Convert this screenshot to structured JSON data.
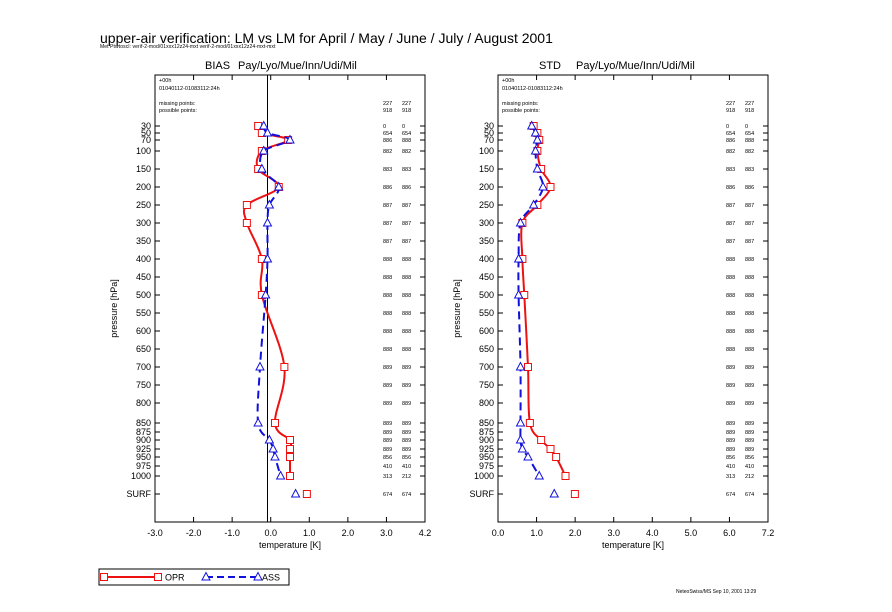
{
  "title": "upper-air verification: LM vs LM for April / May / June / July / August 2001",
  "file_info": "Met Ptwtoscl: verif-2-mod/01xxx12z24-mxt verif-2-mod/01xxx12z24-mxt-mxt",
  "footer_stamp": "NeteoSwiss/MS Sep 10, 2001 13:29",
  "legend": [
    {
      "name": "OPR",
      "color": "#ee1111",
      "marker": "square",
      "dash": "solid"
    },
    {
      "name": "ASS",
      "color": "#1111dd",
      "marker": "triangle",
      "dash": "dashed"
    }
  ],
  "colors": {
    "opr": "#ee1111",
    "ass": "#1111dd"
  },
  "chart_data": [
    {
      "type": "line",
      "title": "BIAS",
      "subtitle": "Pay/Lyo/Mue/Inn/Udi/Mil",
      "xlabel": "temperature  [K]",
      "ylabel": "pressure  [hPa]",
      "xlim": [
        -3.0,
        4.2
      ],
      "xticks": [
        "-3.0",
        "-2.0",
        "-1.0",
        "0.0",
        "1.0",
        "2.0",
        "3.0",
        "4.2"
      ],
      "yticks": [
        "30",
        "50",
        "70",
        "100",
        "150",
        "200",
        "250",
        "300",
        "350",
        "400",
        "450",
        "500",
        "550",
        "600",
        "650",
        "700",
        "750",
        "800",
        "850",
        "875",
        "900",
        "925",
        "950",
        "975",
        "1000",
        "SURF"
      ],
      "zero_line": true,
      "header_text": [
        "+00h",
        "01040112-01083112:24h"
      ],
      "missing_label": "missing points:",
      "possible_label": "possible points:",
      "missing_counts": [
        "227",
        "227"
      ],
      "possible_counts": [
        "918",
        "918"
      ],
      "levels": [
        "30",
        "50",
        "70",
        "100",
        "150",
        "200",
        "250",
        "300",
        "400",
        "500",
        "700",
        "850",
        "900",
        "925",
        "950",
        "1000",
        "SURF"
      ],
      "series": [
        {
          "name": "OPR",
          "values": [
            -0.25,
            -0.15,
            0.55,
            -0.15,
            -0.25,
            0.3,
            -0.55,
            -0.55,
            -0.15,
            -0.15,
            0.45,
            0.2,
            0.6,
            0.6,
            0.6,
            0.6,
            1.05
          ]
        },
        {
          "name": "ASS",
          "values": [
            -0.1,
            0.0,
            0.6,
            -0.1,
            -0.15,
            0.3,
            0.05,
            0.0,
            0.0,
            -0.05,
            -0.2,
            -0.25,
            0.05,
            0.15,
            0.2,
            0.35,
            0.75
          ]
        }
      ],
      "counts": [
        {
          "level": "30",
          "a": "0",
          "b": "0"
        },
        {
          "level": "50",
          "a": "654",
          "b": "654"
        },
        {
          "level": "70",
          "a": "886",
          "b": "888"
        },
        {
          "level": "100",
          "a": "882",
          "b": "882"
        },
        {
          "level": "150",
          "a": "883",
          "b": "883"
        },
        {
          "level": "200",
          "a": "886",
          "b": "886"
        },
        {
          "level": "250",
          "a": "887",
          "b": "887"
        },
        {
          "level": "300",
          "a": "887",
          "b": "887"
        },
        {
          "level": "350",
          "a": "887",
          "b": "887"
        },
        {
          "level": "400",
          "a": "888",
          "b": "888"
        },
        {
          "level": "450",
          "a": "888",
          "b": "888"
        },
        {
          "level": "500",
          "a": "888",
          "b": "888"
        },
        {
          "level": "550",
          "a": "888",
          "b": "888"
        },
        {
          "level": "600",
          "a": "888",
          "b": "888"
        },
        {
          "level": "650",
          "a": "888",
          "b": "888"
        },
        {
          "level": "700",
          "a": "889",
          "b": "889"
        },
        {
          "level": "750",
          "a": "889",
          "b": "889"
        },
        {
          "level": "800",
          "a": "889",
          "b": "889"
        },
        {
          "level": "850",
          "a": "889",
          "b": "889"
        },
        {
          "level": "875",
          "a": "889",
          "b": "889"
        },
        {
          "level": "900",
          "a": "889",
          "b": "889"
        },
        {
          "level": "925",
          "a": "889",
          "b": "889"
        },
        {
          "level": "950",
          "a": "856",
          "b": "856"
        },
        {
          "level": "975",
          "a": "410",
          "b": "410"
        },
        {
          "level": "1000",
          "a": "313",
          "b": "212"
        },
        {
          "level": "SURF",
          "a": "674",
          "b": "674"
        }
      ]
    },
    {
      "type": "line",
      "title": "STD",
      "subtitle": "Pay/Lyo/Mue/Inn/Udi/Mil",
      "xlabel": "temperature  [K]",
      "ylabel": "pressure  [hPa]",
      "xlim": [
        0.0,
        7.2
      ],
      "xticks": [
        "0.0",
        "1.0",
        "2.0",
        "3.0",
        "4.0",
        "5.0",
        "6.0",
        "7.2"
      ],
      "yticks": [
        "30",
        "50",
        "70",
        "100",
        "150",
        "200",
        "250",
        "300",
        "350",
        "400",
        "450",
        "500",
        "550",
        "600",
        "650",
        "700",
        "750",
        "800",
        "850",
        "875",
        "900",
        "925",
        "950",
        "975",
        "1000",
        "SURF"
      ],
      "zero_line": false,
      "header_text": [
        "+00h",
        "01040112-01083112:24h"
      ],
      "missing_label": "missing points:",
      "possible_label": "possible points:",
      "missing_counts": [
        "227",
        "227"
      ],
      "possible_counts": [
        "918",
        "918"
      ],
      "levels": [
        "30",
        "50",
        "70",
        "100",
        "150",
        "200",
        "250",
        "300",
        "400",
        "500",
        "700",
        "850",
        "900",
        "925",
        "950",
        "1000",
        "SURF"
      ],
      "series": [
        {
          "name": "OPR",
          "values": [
            0.95,
            1.05,
            1.1,
            1.05,
            1.15,
            1.4,
            1.05,
            0.65,
            0.65,
            0.7,
            0.8,
            0.85,
            1.15,
            1.4,
            1.55,
            1.8,
            2.05
          ]
        },
        {
          "name": "ASS",
          "values": [
            0.9,
            1.0,
            1.05,
            1.0,
            1.05,
            1.2,
            0.95,
            0.6,
            0.55,
            0.55,
            0.6,
            0.6,
            0.6,
            0.65,
            0.8,
            1.1,
            1.5
          ]
        }
      ],
      "counts": [
        {
          "level": "30",
          "a": "0",
          "b": "0"
        },
        {
          "level": "50",
          "a": "654",
          "b": "654"
        },
        {
          "level": "70",
          "a": "886",
          "b": "888"
        },
        {
          "level": "100",
          "a": "882",
          "b": "882"
        },
        {
          "level": "150",
          "a": "883",
          "b": "883"
        },
        {
          "level": "200",
          "a": "886",
          "b": "886"
        },
        {
          "level": "250",
          "a": "887",
          "b": "887"
        },
        {
          "level": "300",
          "a": "887",
          "b": "887"
        },
        {
          "level": "350",
          "a": "887",
          "b": "887"
        },
        {
          "level": "400",
          "a": "888",
          "b": "888"
        },
        {
          "level": "450",
          "a": "888",
          "b": "888"
        },
        {
          "level": "500",
          "a": "888",
          "b": "888"
        },
        {
          "level": "550",
          "a": "888",
          "b": "888"
        },
        {
          "level": "600",
          "a": "888",
          "b": "888"
        },
        {
          "level": "650",
          "a": "888",
          "b": "888"
        },
        {
          "level": "700",
          "a": "889",
          "b": "889"
        },
        {
          "level": "750",
          "a": "889",
          "b": "889"
        },
        {
          "level": "800",
          "a": "889",
          "b": "889"
        },
        {
          "level": "850",
          "a": "889",
          "b": "889"
        },
        {
          "level": "875",
          "a": "889",
          "b": "889"
        },
        {
          "level": "900",
          "a": "889",
          "b": "889"
        },
        {
          "level": "925",
          "a": "889",
          "b": "889"
        },
        {
          "level": "950",
          "a": "856",
          "b": "856"
        },
        {
          "level": "975",
          "a": "410",
          "b": "410"
        },
        {
          "level": "1000",
          "a": "313",
          "b": "212"
        },
        {
          "level": "SURF",
          "a": "674",
          "b": "674"
        }
      ]
    }
  ]
}
